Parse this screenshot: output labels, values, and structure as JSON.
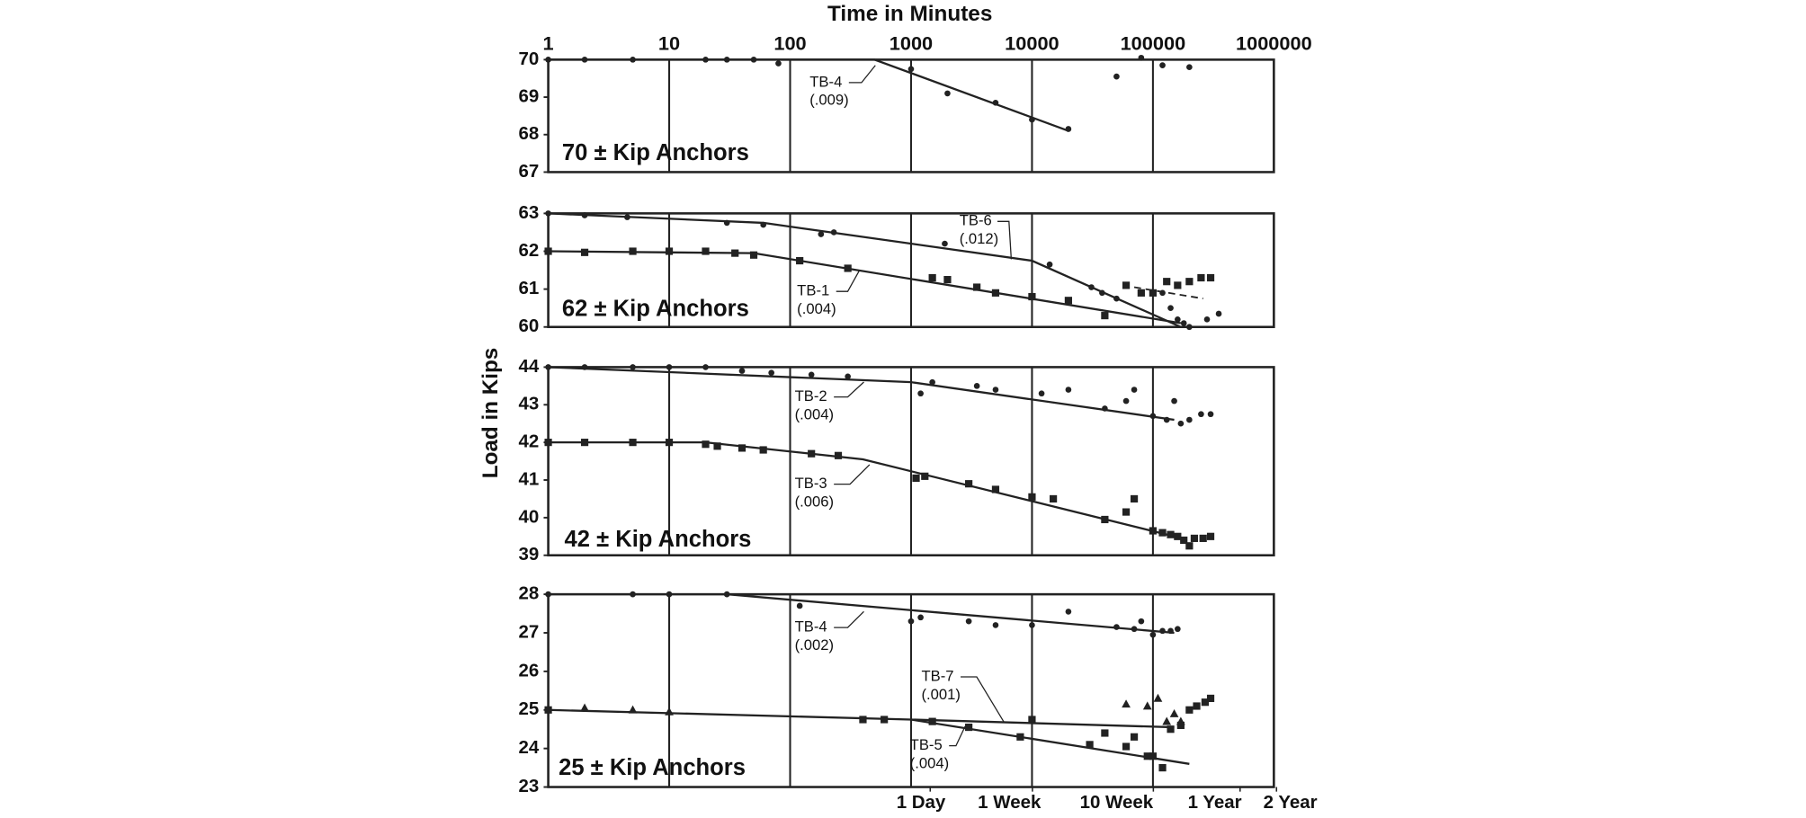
{
  "chart_data": [
    {
      "type": "scatter",
      "xlabel": "Time in Minutes",
      "xscale": "log",
      "grid": true,
      "show_xtick_labels": true,
      "panel_label": "70 ± Kip Anchors",
      "xlim": [
        1,
        1000000
      ],
      "xticks": [
        1,
        10,
        100,
        1000,
        10000,
        100000,
        1000000
      ],
      "ylim": [
        67,
        70
      ],
      "yticks": [
        67,
        68,
        69,
        70
      ],
      "series": [
        {
          "name": "TB-4",
          "rate_label": "(.009)",
          "marker": "circle",
          "color": "#222222",
          "x": [
            1,
            2,
            5,
            20,
            30,
            50,
            80,
            1000,
            2000,
            5000,
            10000,
            20000,
            50000,
            80000,
            120000,
            200000
          ],
          "values": [
            70,
            70,
            70,
            70,
            70,
            70,
            69.9,
            69.75,
            69.1,
            68.85,
            68.4,
            68.15,
            69.55,
            70.05,
            69.85,
            69.8
          ],
          "fit_x": [
            1,
            500,
            20000
          ],
          "fit_values": [
            70,
            70,
            68.1
          ]
        }
      ]
    },
    {
      "type": "scatter",
      "ylabel": "Load in Kips",
      "xscale": "log",
      "grid": true,
      "panel_label": "62 ± Kip Anchors",
      "xlim": [
        1,
        1000000
      ],
      "xticks": [
        1,
        10,
        100,
        1000,
        10000,
        100000,
        1000000
      ],
      "ylim": [
        60,
        63
      ],
      "yticks": [
        60,
        61,
        62,
        63
      ],
      "series": [
        {
          "name": "TB-6",
          "rate_label": "(.012)",
          "marker": "circle",
          "color": "#222222",
          "x": [
            1,
            2,
            4.5,
            30,
            60,
            180,
            230,
            1900,
            14000,
            31000,
            38000,
            50000,
            120000,
            140000,
            160000,
            180000,
            200000,
            280000,
            350000
          ],
          "values": [
            63,
            62.95,
            62.9,
            62.75,
            62.7,
            62.45,
            62.5,
            62.2,
            61.65,
            61.05,
            60.9,
            60.75,
            60.9,
            60.5,
            60.2,
            60.1,
            60,
            60.2,
            60.35
          ],
          "fit_x": [
            1,
            60,
            10000,
            170000
          ],
          "fit_values": [
            63,
            62.75,
            61.75,
            60
          ]
        },
        {
          "name": "TB-1",
          "rate_label": "(.004)",
          "marker": "square",
          "color": "#222222",
          "x": [
            1,
            2,
            5,
            10,
            20,
            35,
            50,
            120,
            300,
            1500,
            2000,
            3500,
            5000,
            10000,
            20000,
            40000,
            60000,
            80000,
            100000,
            130000,
            160000,
            200000,
            250000,
            300000
          ],
          "values": [
            62,
            61.97,
            62,
            62,
            62,
            61.95,
            61.9,
            61.75,
            61.55,
            61.3,
            61.25,
            61.05,
            60.9,
            60.8,
            60.7,
            60.3,
            61.1,
            60.9,
            60.9,
            61.2,
            61.1,
            61.2,
            61.3,
            61.3
          ],
          "fit_x": [
            1,
            50,
            170000
          ],
          "fit_values": [
            62,
            61.95,
            60.1
          ]
        }
      ],
      "dashed_line": {
        "x": [
          70000,
          260000
        ],
        "values": [
          61.05,
          60.75
        ]
      }
    },
    {
      "type": "scatter",
      "xscale": "log",
      "grid": true,
      "panel_label": "42 ± Kip Anchors",
      "xlim": [
        1,
        1000000
      ],
      "xticks": [
        1,
        10,
        100,
        1000,
        10000,
        100000,
        1000000
      ],
      "ylim": [
        39,
        44
      ],
      "yticks": [
        39,
        40,
        41,
        42,
        43,
        44
      ],
      "series": [
        {
          "name": "TB-2",
          "rate_label": "(.004)",
          "marker": "circle",
          "color": "#222222",
          "x": [
            1,
            2,
            5,
            10,
            20,
            40,
            70,
            150,
            300,
            1200,
            1500,
            3500,
            5000,
            12000,
            20000,
            40000,
            60000,
            70000,
            100000,
            130000,
            150000,
            170000,
            200000,
            250000,
            300000
          ],
          "values": [
            44,
            44,
            44,
            44,
            44,
            43.9,
            43.85,
            43.8,
            43.75,
            43.3,
            43.6,
            43.5,
            43.4,
            43.3,
            43.4,
            42.9,
            43.1,
            43.4,
            42.7,
            42.6,
            43.1,
            42.5,
            42.6,
            42.75,
            42.75
          ],
          "fit_x": [
            1,
            1000,
            150000
          ],
          "fit_values": [
            44,
            43.6,
            42.6
          ]
        },
        {
          "name": "TB-3",
          "rate_label": "(.006)",
          "marker": "square",
          "color": "#222222",
          "x": [
            1,
            2,
            5,
            10,
            20,
            25,
            40,
            60,
            150,
            250,
            1100,
            1300,
            3000,
            5000,
            10000,
            15000,
            40000,
            60000,
            70000,
            100000,
            120000,
            140000,
            160000,
            180000,
            200000,
            220000,
            260000,
            300000
          ],
          "values": [
            42,
            42,
            42,
            42,
            41.95,
            41.9,
            41.85,
            41.8,
            41.7,
            41.65,
            41.05,
            41.1,
            40.9,
            40.75,
            40.55,
            40.5,
            39.95,
            40.15,
            40.5,
            39.65,
            39.6,
            39.55,
            39.5,
            39.4,
            39.25,
            39.45,
            39.45,
            39.5
          ],
          "fit_x": [
            1,
            20,
            400,
            150000
          ],
          "fit_values": [
            42,
            42,
            41.55,
            39.5
          ]
        }
      ]
    },
    {
      "type": "scatter",
      "xscale": "log",
      "grid": true,
      "panel_label": "25 ± Kip Anchors",
      "xlim": [
        1,
        1000000
      ],
      "xticks": [
        1,
        10,
        100,
        1000,
        10000,
        100000,
        1000000
      ],
      "x2ticks": [
        {
          "value": 1440,
          "label": "1 Day"
        },
        {
          "value": 10080,
          "label": "1 Week"
        },
        {
          "value": 100800,
          "label": "10 Week"
        },
        {
          "value": 525600,
          "label": "1 Year"
        },
        {
          "value": 1051200,
          "label": "2 Year"
        }
      ],
      "ylim": [
        23,
        28
      ],
      "yticks": [
        23,
        24,
        25,
        26,
        27,
        28
      ],
      "series": [
        {
          "name": "TB-4",
          "rate_label": "(.002)",
          "marker": "circle",
          "color": "#222222",
          "x": [
            1,
            5,
            10,
            30,
            120,
            1000,
            1200,
            3000,
            5000,
            10000,
            20000,
            50000,
            70000,
            80000,
            100000,
            120000,
            140000,
            160000
          ],
          "values": [
            28,
            28,
            28,
            28,
            27.7,
            27.3,
            27.4,
            27.3,
            27.2,
            27.2,
            27.55,
            27.15,
            27.1,
            27.3,
            26.95,
            27.05,
            27.05,
            27.1
          ],
          "fit_x": [
            30,
            150000
          ],
          "fit_values": [
            28,
            27
          ]
        },
        {
          "name": "TB-7",
          "rate_label": "(.001)",
          "marker": "triangle",
          "color": "#222222",
          "x": [
            2,
            5,
            10,
            60000,
            90000,
            110000,
            130000,
            150000,
            170000
          ],
          "values": [
            25.05,
            25,
            24.95,
            25.15,
            25.1,
            25.3,
            24.7,
            24.9,
            24.7
          ],
          "fit_x": [
            1000,
            150000
          ],
          "fit_values": [
            24.75,
            24.55
          ]
        },
        {
          "name": "TB-5",
          "rate_label": "(.004)",
          "marker": "square",
          "color": "#222222",
          "x": [
            1,
            400,
            600,
            1500,
            3000,
            8000,
            10000,
            30000,
            40000,
            60000,
            70000,
            90000,
            100000,
            120000,
            140000,
            170000,
            200000,
            230000,
            270000,
            300000
          ],
          "values": [
            25,
            24.75,
            24.75,
            24.7,
            24.55,
            24.3,
            24.75,
            24.1,
            24.4,
            24.05,
            24.3,
            23.8,
            23.8,
            23.5,
            24.5,
            24.6,
            25,
            25.1,
            25.2,
            25.3
          ],
          "fit_x": [
            1,
            1000,
            200000
          ],
          "fit_values": [
            25,
            24.75,
            23.6
          ]
        }
      ]
    }
  ]
}
